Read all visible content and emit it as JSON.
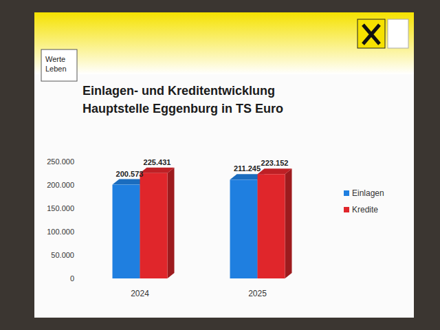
{
  "badge": "Werte Leben",
  "chart_data": {
    "type": "bar",
    "title": "Einlagen- und Kreditentwicklung",
    "subtitle": "Hauptstelle Eggenburg in TS Euro",
    "categories": [
      "2024",
      "2025"
    ],
    "series": [
      {
        "name": "Einlagen",
        "color": "#1f7fe0",
        "values": [
          200573,
          211245
        ],
        "value_labels": [
          "200.573",
          "211.245"
        ]
      },
      {
        "name": "Kredite",
        "color": "#e0262b",
        "values": [
          225431,
          223152
        ],
        "value_labels": [
          "225.431",
          "223.152"
        ]
      }
    ],
    "ylim": [
      0,
      250000
    ],
    "yticks": [
      0,
      {
        "value": 50000,
        "label": "50.000"
      },
      {
        "value": 100000,
        "label": "100.000"
      },
      {
        "value": 150000,
        "label": "150.000"
      },
      {
        "value": 200000,
        "label": "200.000"
      },
      {
        "value": 250000,
        "label": "250.000"
      }
    ],
    "grid": false,
    "legend": "right",
    "data_labels": true
  }
}
